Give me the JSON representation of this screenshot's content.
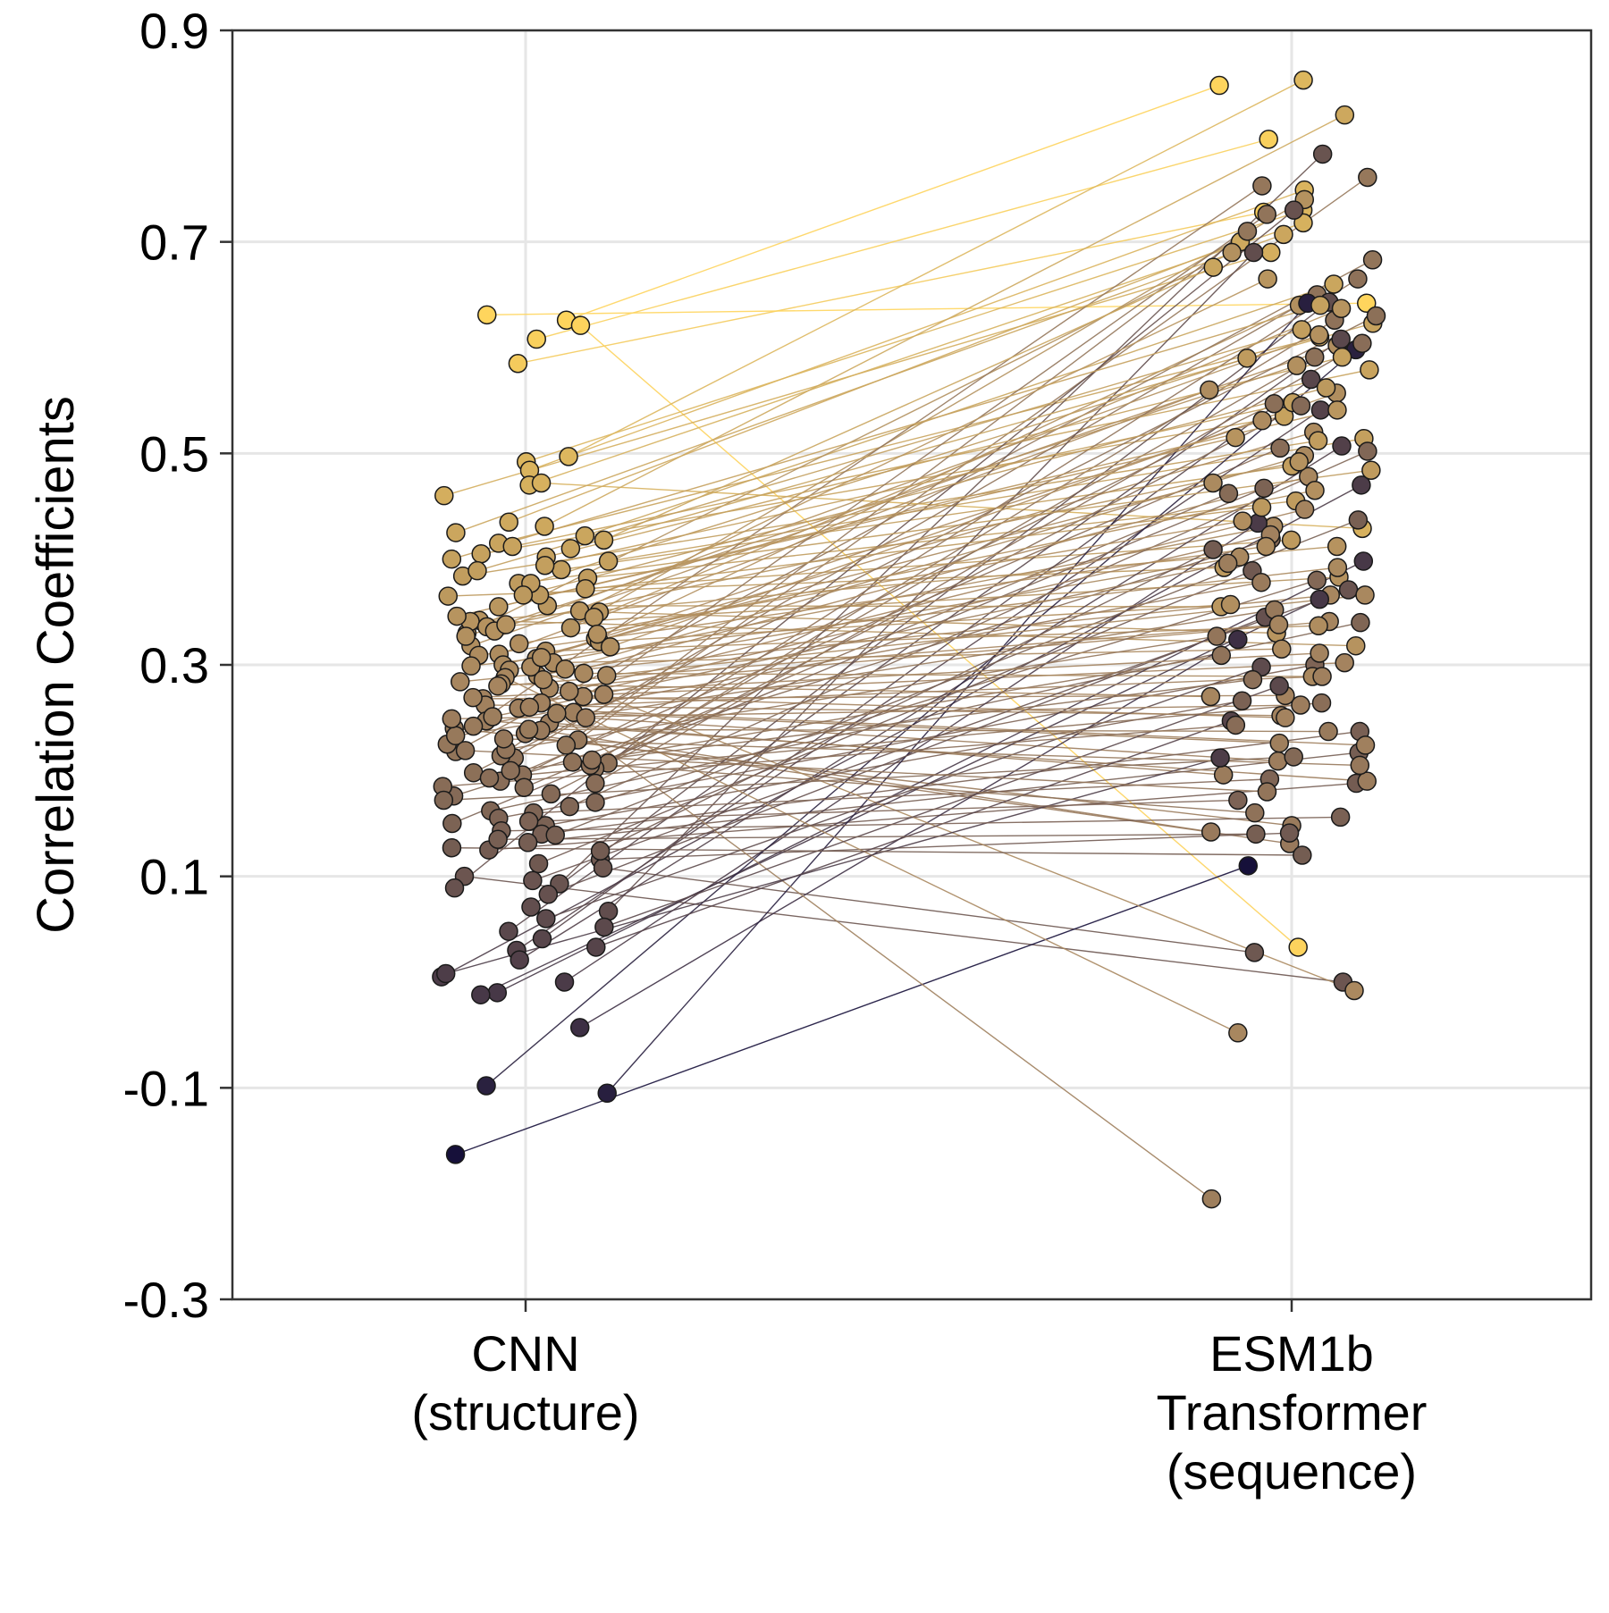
{
  "chart_data": {
    "type": "line",
    "title": "",
    "ylabel": "Correlation Coefficients",
    "xlabel": "",
    "categories": [
      [
        "CNN",
        "(structure)"
      ],
      [
        "ESM1b",
        "Transformer",
        "(sequence)"
      ]
    ],
    "y_ticks": [
      "-0.3",
      "-0.1",
      "0.1",
      "0.3",
      "0.5",
      "0.7",
      "0.9"
    ],
    "ylim": [
      -0.3,
      0.9
    ],
    "grid": true,
    "legend": "none",
    "palette": {
      "low": "#16103a",
      "mid": "#a5845f",
      "high": "#ffd55d"
    },
    "pairs": [
      [
        0.626,
        0.848
      ],
      [
        0.608,
        0.797
      ],
      [
        0.585,
        0.728
      ],
      [
        0.631,
        0.642
      ],
      [
        0.621,
        0.033
      ],
      [
        0.497,
        0.853
      ],
      [
        0.492,
        0.73
      ],
      [
        0.484,
        0.749
      ],
      [
        0.47,
        0.718
      ],
      [
        0.46,
        0.69
      ],
      [
        0.472,
        0.429
      ],
      [
        0.431,
        0.82
      ],
      [
        0.435,
        0.7
      ],
      [
        0.422,
        0.66
      ],
      [
        0.415,
        0.61
      ],
      [
        0.412,
        0.579
      ],
      [
        0.405,
        0.535
      ],
      [
        0.398,
        0.514
      ],
      [
        0.39,
        0.488
      ],
      [
        0.382,
        0.455
      ],
      [
        0.372,
        0.418
      ],
      [
        0.365,
        0.392
      ],
      [
        0.356,
        0.355
      ],
      [
        0.35,
        0.33
      ],
      [
        0.342,
        0.318
      ],
      [
        0.335,
        0.74
      ],
      [
        0.33,
        0.69
      ],
      [
        0.325,
        0.64
      ],
      [
        0.318,
        0.602
      ],
      [
        0.31,
        0.56
      ],
      [
        0.306,
        0.52
      ],
      [
        0.3,
        0.472
      ],
      [
        0.295,
        0.431
      ],
      [
        0.29,
        0.402
      ],
      [
        0.284,
        0.366
      ],
      [
        0.278,
        0.341
      ],
      [
        0.272,
        0.302
      ],
      [
        0.268,
        0.271
      ],
      [
        0.262,
        0.252
      ],
      [
        0.255,
        0.226
      ],
      [
        0.25,
        0.209
      ],
      [
        0.245,
        0.196
      ],
      [
        0.24,
        0.148
      ],
      [
        0.235,
        0.131
      ],
      [
        0.229,
        0.761
      ],
      [
        0.224,
        0.71
      ],
      [
        0.218,
        0.683
      ],
      [
        0.212,
        0.65
      ],
      [
        0.207,
        0.626
      ],
      [
        0.202,
        0.591
      ],
      [
        0.196,
        0.547
      ],
      [
        0.19,
        0.505
      ],
      [
        0.184,
        0.462
      ],
      [
        0.176,
        0.419
      ],
      [
        0.17,
        0.38
      ],
      [
        0.162,
        0.34
      ],
      [
        0.155,
        0.3
      ],
      [
        0.148,
        0.266
      ],
      [
        0.14,
        0.237
      ],
      [
        0.132,
        0.217
      ],
      [
        0.125,
        0.188
      ],
      [
        0.116,
        0.141
      ],
      [
        0.108,
        0.028
      ],
      [
        0.1,
        0.0
      ],
      [
        0.093,
        0.783
      ],
      [
        0.089,
        0.73
      ],
      [
        0.067,
        0.69
      ],
      [
        0.071,
        0.643
      ],
      [
        0.048,
        0.608
      ],
      [
        0.041,
        0.57
      ],
      [
        0.03,
        0.541
      ],
      [
        0.021,
        0.507
      ],
      [
        0.005,
        0.47
      ],
      [
        0.0,
        0.434
      ],
      [
        -0.01,
        0.398
      ],
      [
        -0.012,
        0.362
      ],
      [
        -0.043,
        0.324
      ],
      [
        -0.105,
        0.642
      ],
      [
        -0.098,
        0.598
      ],
      [
        -0.163,
        0.11
      ],
      [
        0.298,
        -0.008
      ],
      [
        0.288,
        -0.048
      ],
      [
        0.254,
        -0.205
      ],
      [
        0.41,
        0.623
      ],
      [
        0.402,
        0.591
      ],
      [
        0.394,
        0.548
      ],
      [
        0.384,
        0.512
      ],
      [
        0.377,
        0.484
      ],
      [
        0.366,
        0.449
      ],
      [
        0.341,
        0.412
      ],
      [
        0.336,
        0.383
      ],
      [
        0.322,
        0.357
      ],
      [
        0.313,
        0.337
      ],
      [
        0.302,
        0.315
      ],
      [
        0.292,
        0.289
      ],
      [
        0.282,
        0.27
      ],
      [
        0.27,
        0.25
      ],
      [
        0.259,
        0.224
      ],
      [
        0.247,
        0.19
      ],
      [
        0.238,
        0.142
      ],
      [
        0.225,
        0.753
      ],
      [
        0.214,
        0.726
      ],
      [
        0.205,
        0.665
      ],
      [
        0.198,
        0.63
      ],
      [
        0.188,
        0.604
      ],
      [
        0.178,
        0.545
      ],
      [
        0.166,
        0.502
      ],
      [
        0.15,
        0.467
      ],
      [
        0.139,
        0.437
      ],
      [
        0.124,
        0.409
      ],
      [
        0.112,
        0.389
      ],
      [
        0.096,
        0.371
      ],
      [
        0.083,
        0.345
      ],
      [
        0.06,
        0.298
      ],
      [
        0.052,
        0.28
      ],
      [
        0.033,
        0.247
      ],
      [
        0.008,
        0.212
      ],
      [
        0.351,
        0.665
      ],
      [
        0.345,
        0.637
      ],
      [
        0.332,
        0.612
      ],
      [
        0.327,
        0.583
      ],
      [
        0.317,
        0.557
      ],
      [
        0.307,
        0.531
      ],
      [
        0.296,
        0.498
      ],
      [
        0.286,
        0.478
      ],
      [
        0.275,
        0.447
      ],
      [
        0.264,
        0.423
      ],
      [
        0.251,
        0.396
      ],
      [
        0.242,
        0.378
      ],
      [
        0.233,
        0.352
      ],
      [
        0.22,
        0.327
      ],
      [
        0.21,
        0.309
      ],
      [
        0.2,
        0.286
      ],
      [
        0.193,
        0.264
      ],
      [
        0.185,
        0.243
      ],
      [
        0.172,
        0.213
      ],
      [
        0.16,
        0.192
      ],
      [
        0.152,
        0.172
      ],
      [
        0.143,
        0.156
      ],
      [
        0.135,
        0.14
      ],
      [
        0.127,
        0.12
      ],
      [
        0.425,
        0.707
      ],
      [
        0.418,
        0.676
      ],
      [
        0.4,
        0.64
      ],
      [
        0.389,
        0.617
      ],
      [
        0.377,
        0.59
      ],
      [
        0.366,
        0.562
      ],
      [
        0.355,
        0.541
      ],
      [
        0.346,
        0.515
      ],
      [
        0.338,
        0.492
      ],
      [
        0.329,
        0.465
      ],
      [
        0.32,
        0.436
      ],
      [
        0.309,
        0.412
      ],
      [
        0.299,
        0.392
      ],
      [
        0.29,
        0.366
      ],
      [
        0.28,
        0.338
      ],
      [
        0.269,
        0.311
      ],
      [
        0.26,
        0.289
      ],
      [
        0.249,
        0.262
      ],
      [
        0.239,
        0.237
      ],
      [
        0.23,
        0.205
      ],
      [
        0.219,
        0.18
      ],
      [
        0.208,
        0.16
      ]
    ]
  }
}
